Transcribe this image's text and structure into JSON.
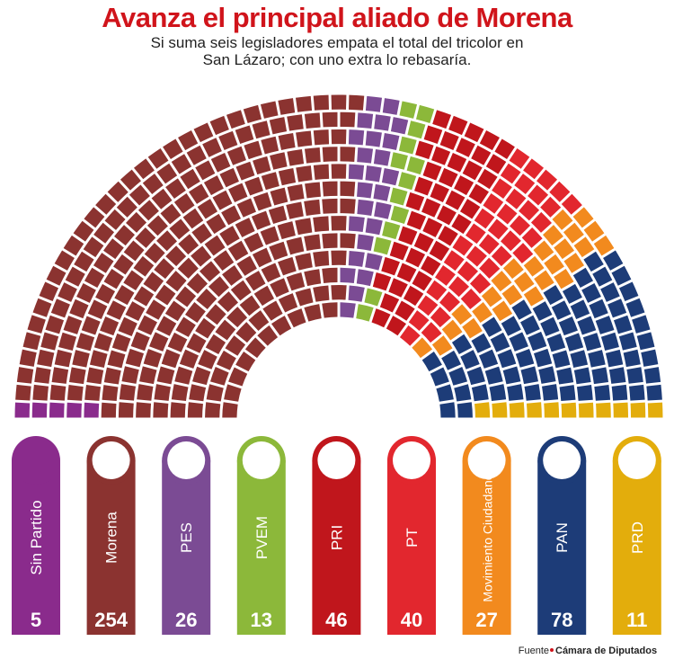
{
  "chart_data": {
    "type": "parliament",
    "title": "Avanza el principal aliado de Morena",
    "subtitle": "Si suma seis legisladores empata el total del tricolor en San Lázaro; con uno extra lo rebasaría.",
    "categories": [
      "Sin Partido",
      "Morena",
      "PES",
      "PVEM",
      "PRI",
      "PT",
      "Movimiento Ciudadano",
      "PAN",
      "PRD"
    ],
    "values": [
      5,
      254,
      26,
      13,
      46,
      40,
      27,
      78,
      11
    ],
    "colors": [
      "#8a2b8c",
      "#8b3330",
      "#7b4b94",
      "#8cb83a",
      "#c0161c",
      "#e2272e",
      "#f28a1e",
      "#1d3c78",
      "#e3ad0c"
    ],
    "source_label": "Fuente",
    "source": "Cámara de Diputados"
  }
}
